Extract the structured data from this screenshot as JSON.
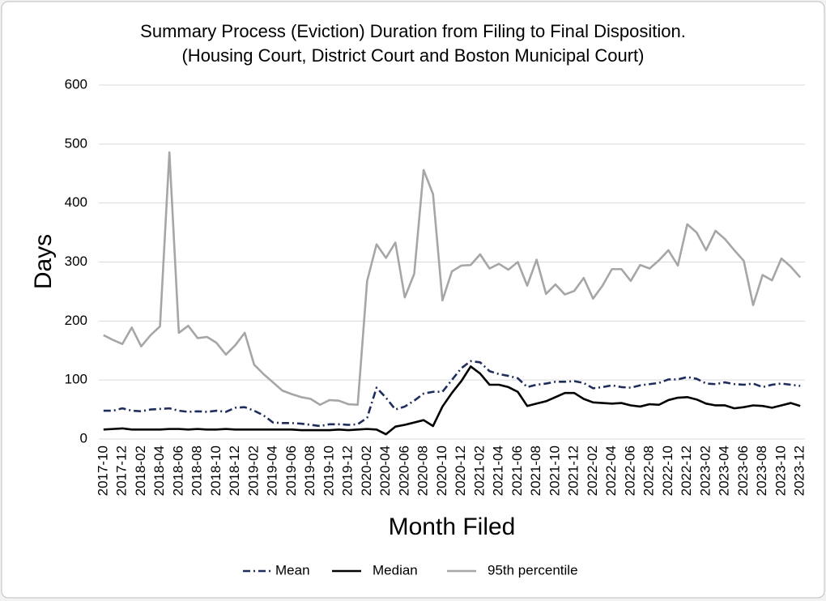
{
  "chart_data": {
    "type": "line",
    "title": [
      "Summary Process (Eviction) Duration from Filing to Final Disposition.",
      "(Housing Court, District Court and Boston Municipal Court)"
    ],
    "y_label": "Days",
    "x_label": "Month Filed",
    "categories": [
      "2017-10",
      null,
      "2017-12",
      null,
      "2018-02",
      null,
      "2018-04",
      null,
      "2018-06",
      null,
      "2018-08",
      null,
      "2018-10",
      null,
      "2018-12",
      null,
      "2019-02",
      null,
      "2019-04",
      null,
      "2019-06",
      null,
      "2019-08",
      null,
      "2019-10",
      null,
      "2019-12",
      null,
      "2020-02",
      null,
      "2020-04",
      null,
      "2020-06",
      null,
      "2020-08",
      null,
      "2020-10",
      null,
      "2020-12",
      null,
      "2021-02",
      null,
      "2021-04",
      null,
      "2021-06",
      null,
      "2021-08",
      null,
      "2021-10",
      null,
      "2021-12",
      null,
      "2022-02",
      null,
      "2022-04",
      null,
      "2022-06",
      null,
      "2022-08",
      null,
      "2022-10",
      null,
      "2022-12",
      null,
      "2023-02",
      null,
      "2023-04",
      null,
      "2023-06",
      null,
      "2023-08",
      null,
      "2023-10",
      null,
      "2023-12"
    ],
    "series": [
      {
        "name": "Mean",
        "color": "#1f2d5c",
        "line_style": "dashdot",
        "values": [
          48,
          48,
          52,
          48,
          47,
          50,
          51,
          52,
          48,
          46,
          47,
          46,
          48,
          46,
          53,
          54,
          48,
          40,
          28,
          27,
          27,
          26,
          24,
          22,
          25,
          25,
          24,
          25,
          36,
          87,
          70,
          50,
          55,
          65,
          77,
          80,
          80,
          100,
          120,
          132,
          130,
          115,
          110,
          107,
          103,
          88,
          92,
          94,
          97,
          97,
          98,
          95,
          86,
          88,
          91,
          88,
          87,
          91,
          93,
          95,
          101,
          101,
          105,
          102,
          94,
          93,
          96,
          93,
          92,
          94,
          88,
          92,
          94,
          92,
          90
        ]
      },
      {
        "name": "Median",
        "color": "#000000",
        "line_style": "solid",
        "values": [
          16,
          17,
          18,
          16,
          16,
          16,
          16,
          17,
          17,
          16,
          17,
          16,
          16,
          17,
          16,
          16,
          16,
          16,
          16,
          16,
          16,
          15,
          15,
          15,
          15,
          16,
          15,
          16,
          17,
          16,
          8,
          21,
          24,
          28,
          32,
          22,
          55,
          78,
          98,
          123,
          111,
          92,
          92,
          88,
          80,
          56,
          60,
          64,
          71,
          78,
          78,
          68,
          62,
          61,
          60,
          61,
          57,
          55,
          59,
          58,
          66,
          70,
          71,
          67,
          60,
          57,
          57,
          52,
          54,
          57,
          56,
          53,
          57,
          61,
          56
        ]
      },
      {
        "name": "95th percentile",
        "color": "#a6a6a6",
        "line_style": "solid",
        "values": [
          176,
          168,
          161,
          189,
          157,
          176,
          191,
          486,
          180,
          192,
          171,
          173,
          163,
          143,
          159,
          180,
          126,
          110,
          96,
          82,
          76,
          71,
          68,
          58,
          66,
          65,
          59,
          58,
          268,
          330,
          307,
          333,
          240,
          280,
          456,
          415,
          235,
          284,
          294,
          295,
          313,
          289,
          297,
          287,
          300,
          260,
          304,
          246,
          262,
          245,
          251,
          273,
          238,
          260,
          288,
          288,
          268,
          295,
          289,
          303,
          320,
          294,
          364,
          350,
          320,
          353,
          339,
          320,
          302,
          227,
          278,
          269,
          306,
          292,
          274
        ]
      }
    ],
    "ylim": [
      0,
      600
    ],
    "yticks": [
      0,
      100,
      200,
      300,
      400,
      500,
      600
    ],
    "grid": true,
    "legend": "bottom"
  }
}
